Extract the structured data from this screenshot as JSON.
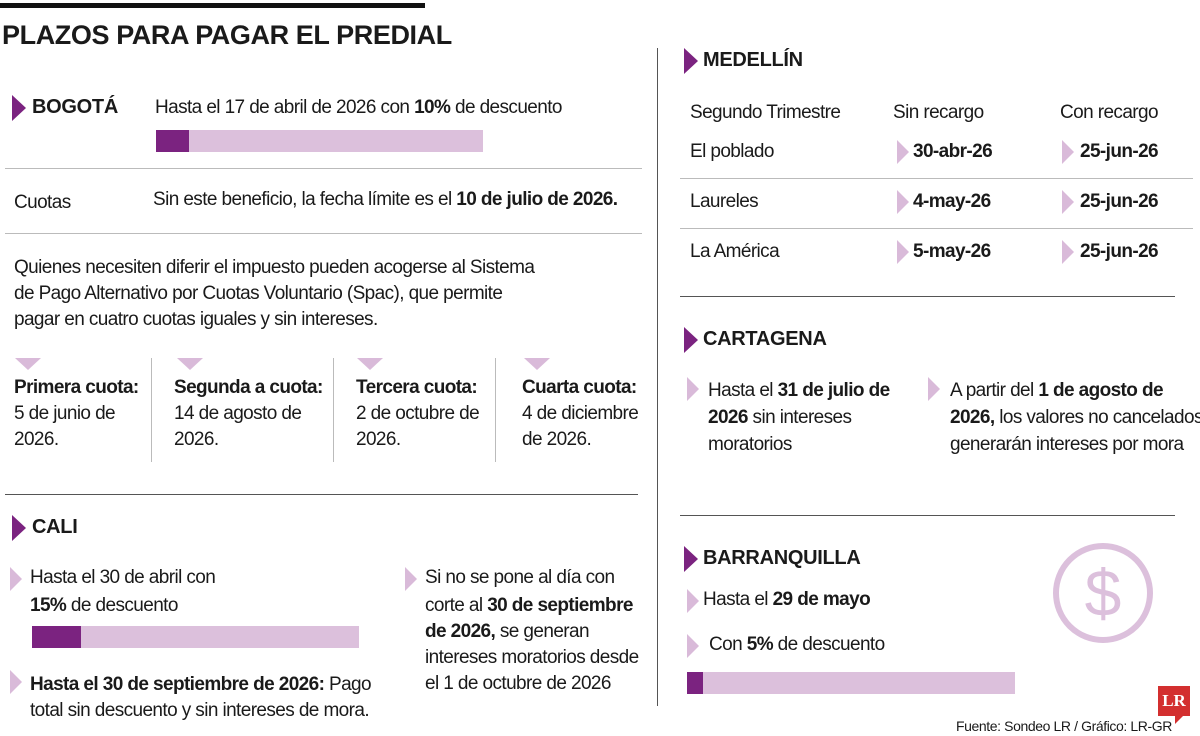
{
  "title": "PLAZOS PARA PAGAR EL PREDIAL",
  "colors": {
    "accent": "#7b2380",
    "light": "#dcc0dc",
    "logo": "#d32f2f"
  },
  "bogota": {
    "heading": "BOGOTÁ",
    "discount": {
      "pre": "Hasta el 17 de abril de 2026 con ",
      "bold": "10%",
      "post": " de descuento"
    },
    "discount_percent": 10,
    "cuotas_label": "Cuotas",
    "deadline": {
      "pre": "Sin este beneficio, la fecha límite es el ",
      "bold": "10 de julio de 2026."
    },
    "paragraph": [
      "Quienes necesiten diferir el impuesto pueden acogerse al Sistema",
      "de Pago Alternativo por Cuotas Voluntario (Spac), que permite",
      "pagar en cuatro cuotas iguales y sin intereses."
    ],
    "installments": [
      {
        "label": "Primera cuota:",
        "lines": [
          "5 de junio de",
          "2026."
        ]
      },
      {
        "label": "Segunda a cuota:",
        "lines": [
          "14 de agosto de",
          "2026."
        ]
      },
      {
        "label": "Tercera cuota:",
        "lines": [
          "2 de octubre de",
          "2026."
        ]
      },
      {
        "label": "Cuarta cuota:",
        "lines": [
          "4 de diciembre",
          "de 2026."
        ]
      }
    ]
  },
  "cali": {
    "heading": "CALI",
    "item1": {
      "line1": "Hasta el 30 de abril con",
      "bold": "15%",
      "post": " de descuento"
    },
    "discount_percent": 15,
    "item2": {
      "bold": "Hasta el 30 de septiembre de 2026:",
      "post": " Pago",
      "line2": "total sin descuento y sin intereses de mora."
    },
    "item3": {
      "line1": "Si no se pone al día con",
      "line2_pre": "corte al ",
      "line2_bold": "30 de septiembre",
      "line3_bold": "de 2026,",
      "line3_post": " se generan",
      "line4": "intereses moratorios desde",
      "line5": "el 1 de octubre de 2026"
    }
  },
  "medellin": {
    "heading": "MEDELLÍN",
    "columns": [
      "Segundo Trimestre",
      "Sin recargo",
      "Con recargo"
    ],
    "rows": [
      {
        "zone": "El poblado",
        "sin": "30-abr-26",
        "con": "25-jun-26"
      },
      {
        "zone": "Laureles",
        "sin": "4-may-26",
        "con": "25-jun-26"
      },
      {
        "zone": "La América",
        "sin": "5-may-26",
        "con": "25-jun-26"
      }
    ]
  },
  "cartagena": {
    "heading": "CARTAGENA",
    "left": {
      "pre": "Hasta el ",
      "bold1": "31 de julio de",
      "bold2": "2026",
      "post": " sin intereses",
      "line3": "moratorios"
    },
    "right": {
      "pre": "A partir del ",
      "bold1": "1 de agosto de",
      "bold2": "2026,",
      "post": " los valores no cancelados",
      "line3": "generarán intereses por mora"
    }
  },
  "barranquilla": {
    "heading": "BARRANQUILLA",
    "item1": {
      "pre": "Hasta el ",
      "bold": "29 de mayo"
    },
    "item2": {
      "pre": "Con ",
      "bold": "5%",
      "post": " de descuento"
    },
    "discount_percent": 5,
    "icon": "dollar-circle-icon"
  },
  "source": "Fuente: Sondeo LR / Gráfico: LR-GR",
  "logo": "LR"
}
